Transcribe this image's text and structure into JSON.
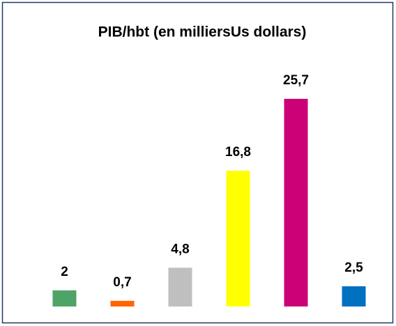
{
  "chart_data": {
    "type": "bar",
    "title": "PIB/hbt (en milliersUs dollars)",
    "categories": [
      null,
      null,
      null,
      null,
      null,
      null
    ],
    "values": [
      2,
      0.7,
      4.8,
      16.8,
      25.7,
      2.5
    ],
    "value_labels": [
      "2",
      "0,7",
      "4,8",
      "16,8",
      "25,7",
      "2,5"
    ],
    "colors": [
      "#4ea466",
      "#ff6600",
      "#bfbfbf",
      "#ffff00",
      "#cc0077",
      "#0070c0"
    ],
    "ylim": [
      0,
      30
    ]
  }
}
